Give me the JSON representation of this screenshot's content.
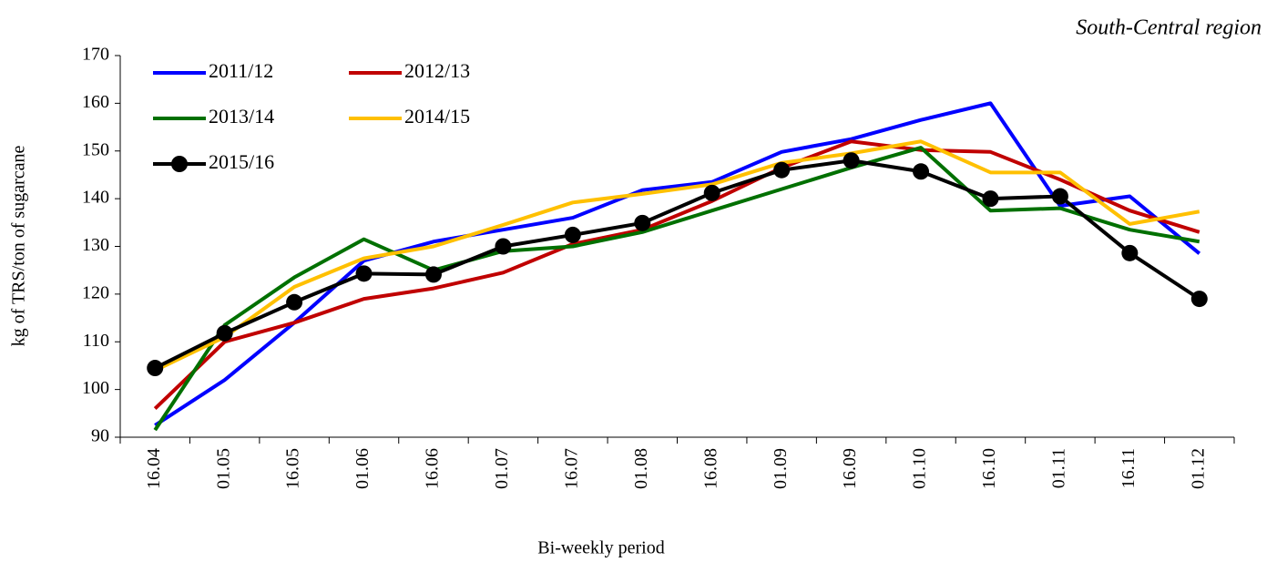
{
  "chart_data": {
    "type": "line",
    "annotation": "South-Central region",
    "x_label": "Bi-weekly period",
    "y_label": "kg of TRS/ton of sugarcane",
    "categories": [
      "16.04",
      "01.05",
      "16.05",
      "01.06",
      "16.06",
      "01.07",
      "16.07",
      "01.08",
      "16.08",
      "01.09",
      "16.09",
      "01.10",
      "16.10",
      "01.11",
      "16.11",
      "01.12"
    ],
    "ylim": [
      90,
      170
    ],
    "yticks": [
      90,
      100,
      110,
      120,
      130,
      140,
      150,
      160,
      170
    ],
    "series": [
      {
        "name": "2011/12",
        "color": "#0000ff",
        "values": [
          92.5,
          102,
          114,
          127,
          131,
          133.5,
          136,
          141.8,
          143.5,
          149.8,
          152.5,
          156.5,
          160,
          138.5,
          140.5,
          128.5
        ]
      },
      {
        "name": "2012/13",
        "color": "#c00000",
        "values": [
          96,
          110,
          114,
          119,
          121.2,
          124.5,
          130.5,
          133.5,
          139.5,
          146.5,
          152,
          150.2,
          149.8,
          144,
          137.5,
          133
        ]
      },
      {
        "name": "2013/14",
        "color": "#007000",
        "values": [
          91.5,
          113.5,
          123.5,
          131.5,
          125,
          129,
          130,
          133,
          137.5,
          142,
          146.5,
          150.7,
          137.5,
          138,
          133.5,
          131
        ]
      },
      {
        "name": "2014/15",
        "color": "#ffc000",
        "values": [
          104,
          111,
          121.5,
          127.5,
          130,
          134.5,
          139.2,
          141,
          143,
          147.5,
          149.5,
          152,
          145.5,
          145.5,
          134.7,
          137.3
        ]
      },
      {
        "name": "2015/16",
        "color": "#000000",
        "marker": "circle",
        "values": [
          104.5,
          111.8,
          118.3,
          124.3,
          124.1,
          130,
          132.4,
          134.9,
          141.2,
          146,
          148,
          145.7,
          140,
          140.5,
          128.6,
          119
        ]
      }
    ]
  }
}
